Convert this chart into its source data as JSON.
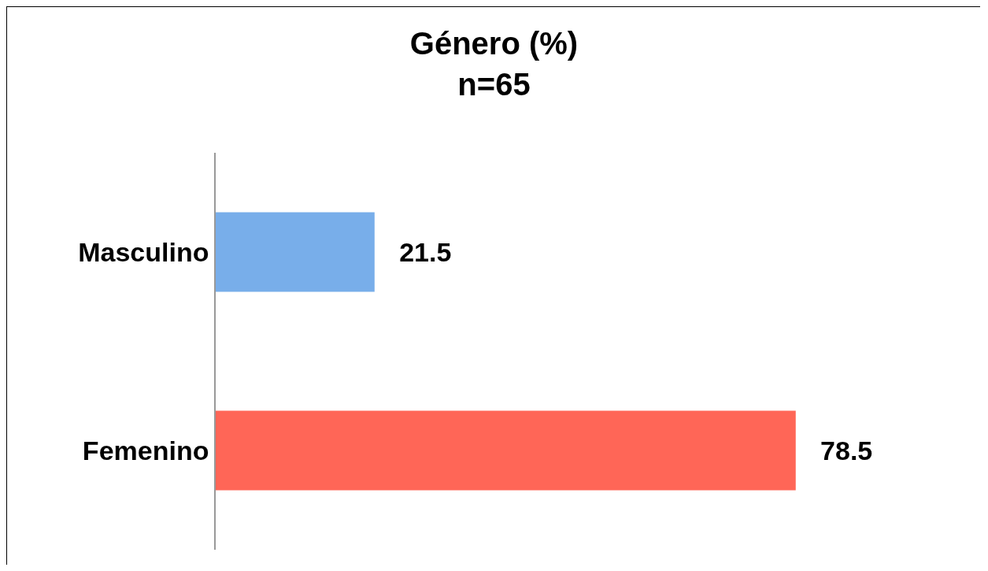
{
  "chart_data": {
    "type": "bar",
    "orientation": "horizontal",
    "title": "Género (%)",
    "subtitle": "n=65",
    "categories": [
      "Masculino",
      "Femenino"
    ],
    "values": [
      21.5,
      78.5
    ],
    "colors": [
      "#78aeea",
      "#ff6657"
    ],
    "data_labels": true,
    "tick_labels": "y"
  }
}
